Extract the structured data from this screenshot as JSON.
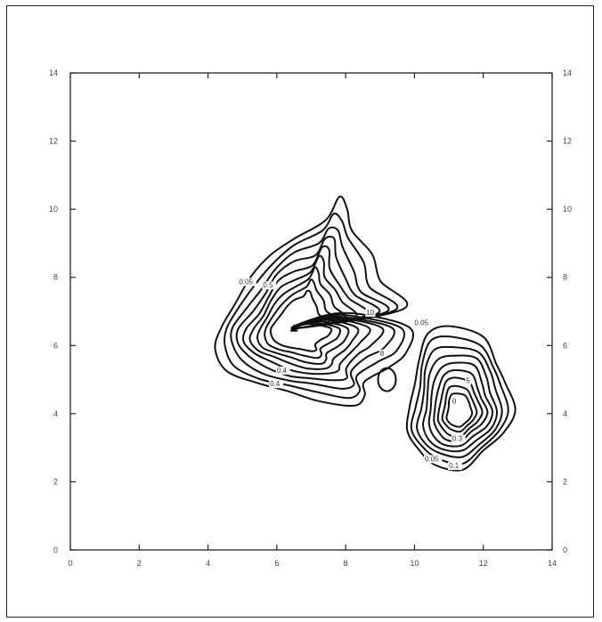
{
  "chart_data": {
    "type": "contour",
    "title": "",
    "xlabel": "",
    "ylabel": "",
    "xlim": [
      0,
      14
    ],
    "ylim": [
      0,
      14
    ],
    "x_ticks": [
      "0",
      "2",
      "4",
      "6",
      "8",
      "10",
      "12",
      "14"
    ],
    "y_ticks": [
      "0",
      "2",
      "4",
      "6",
      "8",
      "10",
      "12",
      "14"
    ],
    "grid": false,
    "legend": "none",
    "line_color": "#111111",
    "peaks": [
      {
        "marker": "triangle",
        "x": 6.5,
        "y": 6.5
      },
      {
        "marker": "none",
        "x": 11.3,
        "y": 4.0
      }
    ],
    "contour_labels": [
      {
        "text": "0.05",
        "x": 4.9,
        "y": 7.8
      },
      {
        "text": "0.5",
        "x": 5.6,
        "y": 7.7
      },
      {
        "text": "10",
        "x": 8.6,
        "y": 6.9
      },
      {
        "text": "0.05",
        "x": 10.0,
        "y": 6.6
      },
      {
        "text": "0.4",
        "x": 6.0,
        "y": 5.2
      },
      {
        "text": "0.4",
        "x": 5.8,
        "y": 4.8
      },
      {
        "text": "8",
        "x": 9.0,
        "y": 5.7
      },
      {
        "text": "5",
        "x": 11.5,
        "y": 4.9
      },
      {
        "text": "0",
        "x": 11.1,
        "y": 4.3
      },
      {
        "text": "0.3",
        "x": 11.1,
        "y": 3.2
      },
      {
        "text": "0.05",
        "x": 10.3,
        "y": 2.6
      },
      {
        "text": "0.1",
        "x": 11.0,
        "y": 2.4
      }
    ]
  }
}
